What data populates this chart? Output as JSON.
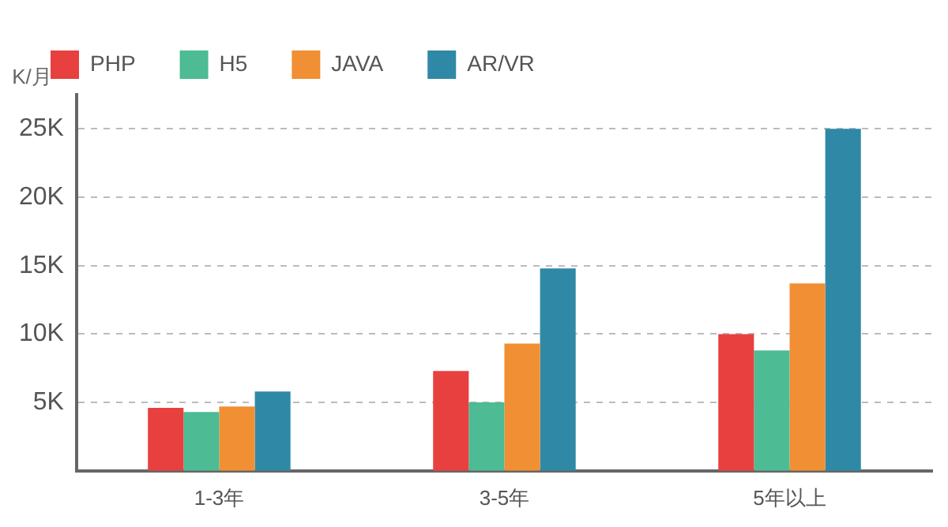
{
  "chart_data": {
    "type": "bar",
    "ylabel": "K/月",
    "categories": [
      "1-3年",
      "3-5年",
      "5年以上"
    ],
    "series": [
      {
        "name": "PHP",
        "color": "#e8403f",
        "values": [
          4.6,
          7.3,
          10
        ]
      },
      {
        "name": "H5",
        "color": "#4dbb94",
        "values": [
          4.3,
          5.0,
          8.8
        ]
      },
      {
        "name": "JAVA",
        "color": "#f08f33",
        "values": [
          4.7,
          9.3,
          13.7
        ]
      },
      {
        "name": "AR/VR",
        "color": "#2f89a6",
        "values": [
          5.8,
          14.8,
          25
        ]
      }
    ],
    "ylim": [
      0,
      27.5
    ],
    "yticks": [
      {
        "value": 5,
        "label": "5K"
      },
      {
        "value": 10,
        "label": "10K"
      },
      {
        "value": 15,
        "label": "15K"
      },
      {
        "value": 20,
        "label": "20K"
      },
      {
        "value": 25,
        "label": "25K"
      }
    ],
    "grid": "y",
    "legend": "top"
  }
}
